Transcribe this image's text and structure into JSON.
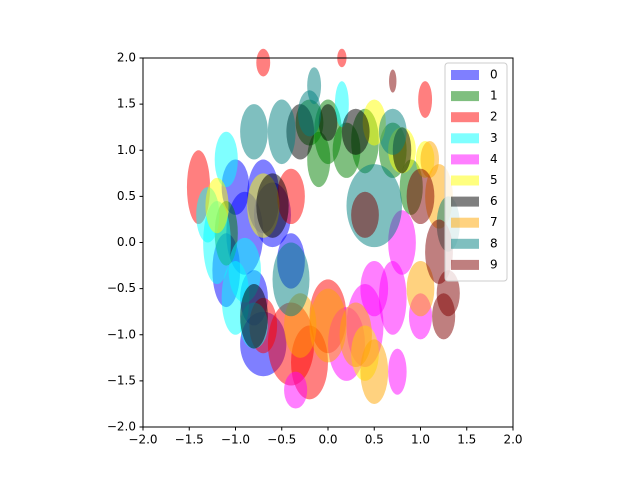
{
  "chart_data": {
    "type": "ellipse",
    "alpha": 0.5,
    "legend": "upper right",
    "xlim": [
      -2,
      2
    ],
    "ylim": [
      -2,
      2
    ],
    "xticks": [
      {
        "value": -2,
        "label": "−2.0"
      },
      {
        "value": -1.5,
        "label": "−1.5"
      },
      {
        "value": -1,
        "label": "−1.0"
      },
      {
        "value": -0.5,
        "label": "−0.5"
      },
      {
        "value": 0,
        "label": "0.0"
      },
      0.5,
      {
        "value": 1,
        "label": "1.0"
      },
      1.5,
      {
        "value": 2,
        "label": "2.0"
      }
    ],
    "yticks": [
      {
        "value": -2,
        "label": "−2.0"
      },
      {
        "value": -1.5,
        "label": "−1.5"
      },
      {
        "value": -1,
        "label": "−1.0"
      },
      {
        "value": -0.5,
        "label": "−0.5"
      },
      {
        "value": 0,
        "label": "0.0"
      },
      0.5,
      {
        "value": 1,
        "label": "1.0"
      },
      1.5,
      {
        "value": 2,
        "label": "2.0"
      }
    ],
    "series": [
      {
        "name": "0",
        "color": "#0000ff",
        "x": [
          -0.9,
          -0.7,
          -1.1,
          -0.7,
          -0.6,
          -1.0,
          -0.4,
          -0.8
        ],
        "y": [
          0.1,
          0.5,
          -0.3,
          -1.1,
          0.3,
          0.6,
          -0.2,
          -0.6
        ],
        "width": [
          0.4,
          0.35,
          0.3,
          0.5,
          0.4,
          0.3,
          0.3,
          0.3
        ],
        "height": [
          0.9,
          0.8,
          0.8,
          0.7,
          0.7,
          0.6,
          0.6,
          0.6
        ]
      },
      {
        "name": "1",
        "color": "#008000",
        "x": [
          0.0,
          0.2,
          -0.1,
          0.4,
          0.7,
          0.9,
          -1.1,
          -0.2
        ],
        "y": [
          1.2,
          1.0,
          0.9,
          1.1,
          1.0,
          0.6,
          0.1,
          1.3
        ],
        "width": [
          0.3,
          0.3,
          0.25,
          0.3,
          0.3,
          0.25,
          0.25,
          0.3
        ],
        "height": [
          0.7,
          0.6,
          0.6,
          0.7,
          0.6,
          0.6,
          0.7,
          0.5
        ]
      },
      {
        "name": "2",
        "color": "#ff0000",
        "x": [
          -1.4,
          -0.7,
          1.05,
          0.15,
          -0.4,
          -0.2,
          0.0,
          -0.7,
          -0.4
        ],
        "y": [
          0.6,
          1.95,
          1.55,
          2.0,
          -1.1,
          -1.3,
          -0.8,
          -0.9,
          0.5
        ],
        "width": [
          0.25,
          0.15,
          0.15,
          0.1,
          0.5,
          0.4,
          0.4,
          0.3,
          0.3
        ],
        "height": [
          0.8,
          0.3,
          0.4,
          0.2,
          0.9,
          0.8,
          0.8,
          0.6,
          0.6
        ]
      },
      {
        "name": "3",
        "color": "#00ffff",
        "x": [
          -1.2,
          -1.0,
          -1.1,
          -0.9,
          0.15,
          -1.3,
          -0.8
        ],
        "y": [
          0.0,
          -0.6,
          0.9,
          -0.3,
          1.5,
          0.3,
          -0.9
        ],
        "width": [
          0.3,
          0.3,
          0.25,
          0.35,
          0.15,
          0.25,
          0.3
        ],
        "height": [
          0.9,
          0.8,
          0.6,
          0.7,
          0.5,
          0.6,
          0.5
        ]
      },
      {
        "name": "4",
        "color": "#ff00ff",
        "x": [
          0.4,
          0.8,
          0.2,
          0.7,
          1.0,
          0.5,
          -0.35,
          0.75
        ],
        "y": [
          -0.9,
          0.0,
          -1.1,
          -0.6,
          -0.8,
          -0.5,
          -1.6,
          -1.4
        ],
        "width": [
          0.4,
          0.3,
          0.4,
          0.3,
          0.25,
          0.3,
          0.25,
          0.2
        ],
        "height": [
          0.9,
          0.7,
          0.8,
          0.8,
          0.5,
          0.6,
          0.4,
          0.5
        ]
      },
      {
        "name": "5",
        "color": "#ffff00",
        "x": [
          -0.7,
          0.8,
          0.4,
          -1.2,
          0.5,
          1.05
        ],
        "y": [
          0.4,
          1.0,
          -1.2,
          0.4,
          1.3,
          0.9
        ],
        "width": [
          0.35,
          0.3,
          0.3,
          0.25,
          0.25,
          0.2
        ],
        "height": [
          0.7,
          0.5,
          0.6,
          0.6,
          0.5,
          0.4
        ]
      },
      {
        "name": "6",
        "color": "#000000",
        "x": [
          -0.6,
          -0.3,
          0.3,
          0.8,
          -0.8,
          0.0
        ],
        "y": [
          0.4,
          1.2,
          1.2,
          1.0,
          -0.8,
          1.3
        ],
        "width": [
          0.35,
          0.3,
          0.3,
          0.2,
          0.3,
          0.2
        ],
        "height": [
          0.7,
          0.6,
          0.5,
          0.5,
          0.7,
          0.4
        ]
      },
      {
        "name": "7",
        "color": "#ffa500",
        "x": [
          0.0,
          0.5,
          1.0,
          1.2,
          0.3,
          -0.3,
          1.1
        ],
        "y": [
          -0.9,
          -1.4,
          -0.5,
          0.5,
          -1.0,
          -0.9,
          0.9
        ],
        "width": [
          0.4,
          0.3,
          0.3,
          0.3,
          0.35,
          0.35,
          0.2
        ],
        "height": [
          0.8,
          0.7,
          0.6,
          0.7,
          0.7,
          0.7,
          0.4
        ]
      },
      {
        "name": "8",
        "color": "#008080",
        "x": [
          -0.5,
          -0.8,
          -0.2,
          0.5,
          -0.4,
          -0.15,
          0.7,
          1.3
        ],
        "y": [
          1.2,
          1.2,
          1.4,
          0.4,
          -0.4,
          1.7,
          1.2,
          0.2
        ],
        "width": [
          0.3,
          0.3,
          0.25,
          0.6,
          0.4,
          0.15,
          0.3,
          0.25
        ],
        "height": [
          0.7,
          0.6,
          0.5,
          0.9,
          0.8,
          0.4,
          0.5,
          0.6
        ]
      },
      {
        "name": "9",
        "color": "#800000",
        "x": [
          0.7,
          1.2,
          1.3,
          1.25,
          1.0,
          0.4
        ],
        "y": [
          1.75,
          -0.1,
          -0.55,
          -0.8,
          0.5,
          0.3
        ],
        "width": [
          0.08,
          0.3,
          0.25,
          0.25,
          0.3,
          0.3
        ],
        "height": [
          0.25,
          0.7,
          0.5,
          0.5,
          0.6,
          0.5
        ]
      }
    ]
  }
}
